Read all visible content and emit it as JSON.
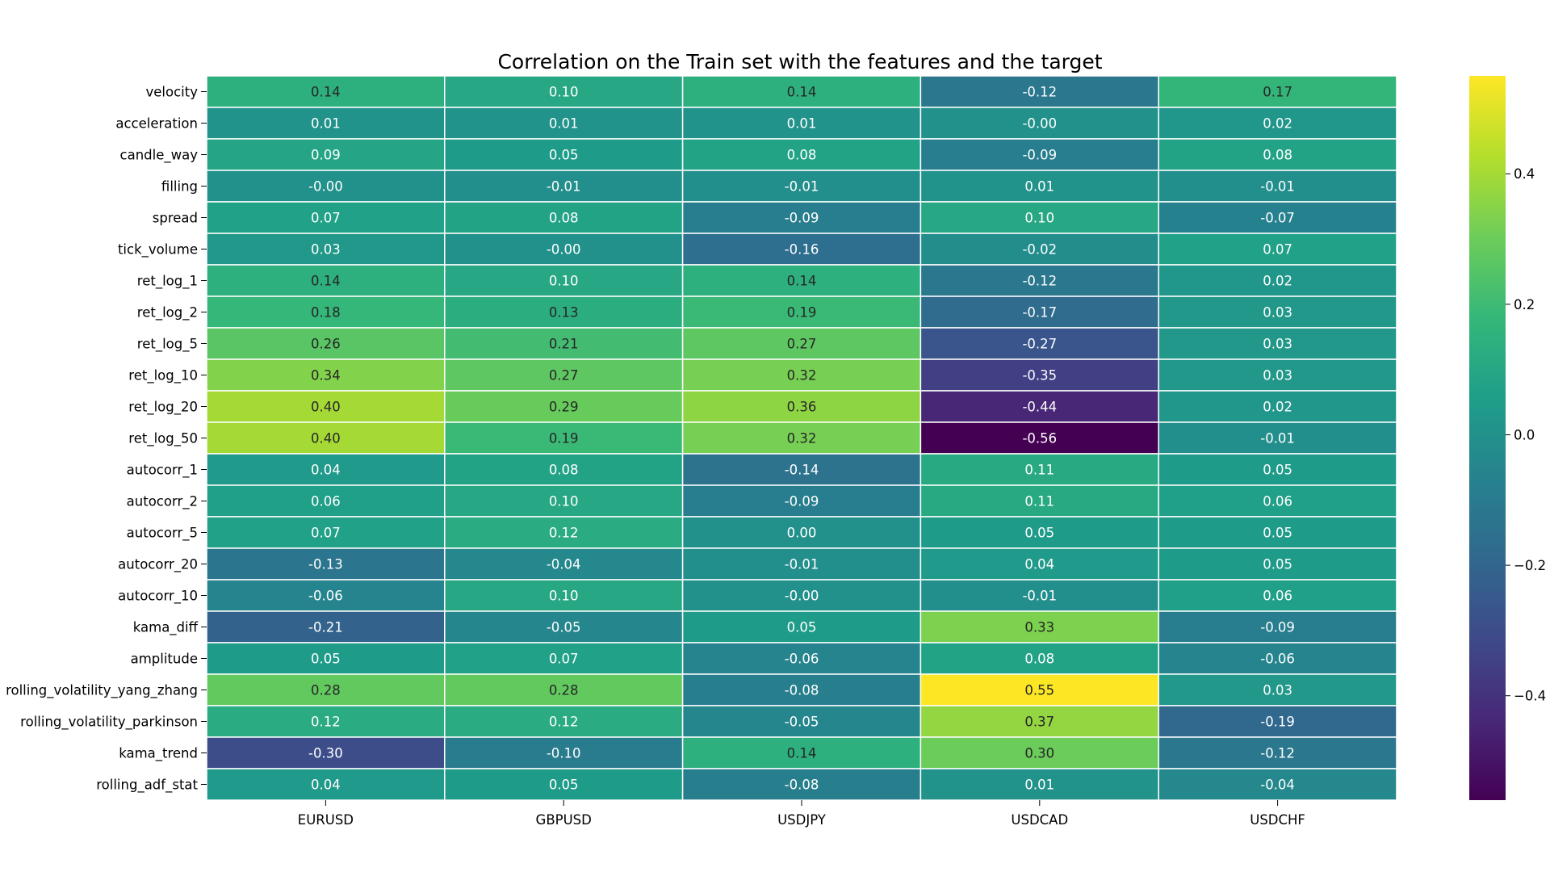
{
  "chart_data": {
    "type": "heatmap",
    "title": "Correlation on the Train set with the features and the target",
    "colormap": "viridis",
    "vmin": -0.56,
    "vmax": 0.55,
    "columns": [
      "EURUSD",
      "GBPUSD",
      "USDJPY",
      "USDCAD",
      "USDCHF"
    ],
    "rows": [
      "velocity",
      "acceleration",
      "candle_way",
      "filling",
      "spread",
      "tick_volume",
      "ret_log_1",
      "ret_log_2",
      "ret_log_5",
      "ret_log_10",
      "ret_log_20",
      "ret_log_50",
      "autocorr_1",
      "autocorr_2",
      "autocorr_5",
      "autocorr_20",
      "autocorr_10",
      "kama_diff",
      "amplitude",
      "rolling_volatility_yang_zhang",
      "rolling_volatility_parkinson",
      "kama_trend",
      "rolling_adf_stat"
    ],
    "values": [
      [
        0.14,
        0.1,
        0.14,
        -0.12,
        0.17
      ],
      [
        0.01,
        0.01,
        0.01,
        -0.0,
        0.02
      ],
      [
        0.09,
        0.05,
        0.08,
        -0.09,
        0.08
      ],
      [
        -0.0,
        -0.01,
        -0.01,
        0.01,
        -0.01
      ],
      [
        0.07,
        0.08,
        -0.09,
        0.1,
        -0.07
      ],
      [
        0.03,
        -0.0,
        -0.16,
        -0.02,
        0.07
      ],
      [
        0.14,
        0.1,
        0.14,
        -0.12,
        0.02
      ],
      [
        0.18,
        0.13,
        0.19,
        -0.17,
        0.03
      ],
      [
        0.26,
        0.21,
        0.27,
        -0.27,
        0.03
      ],
      [
        0.34,
        0.27,
        0.32,
        -0.35,
        0.03
      ],
      [
        0.4,
        0.29,
        0.36,
        -0.44,
        0.02
      ],
      [
        0.4,
        0.19,
        0.32,
        -0.56,
        -0.01
      ],
      [
        0.04,
        0.08,
        -0.14,
        0.11,
        0.05
      ],
      [
        0.06,
        0.1,
        -0.09,
        0.11,
        0.06
      ],
      [
        0.07,
        0.12,
        0.0,
        0.05,
        0.05
      ],
      [
        -0.13,
        -0.04,
        -0.01,
        0.04,
        0.05
      ],
      [
        -0.06,
        0.1,
        -0.0,
        -0.01,
        0.06
      ],
      [
        -0.21,
        -0.05,
        0.05,
        0.33,
        -0.09
      ],
      [
        0.05,
        0.07,
        -0.06,
        0.08,
        -0.06
      ],
      [
        0.28,
        0.28,
        -0.08,
        0.55,
        0.03
      ],
      [
        0.12,
        0.12,
        -0.05,
        0.37,
        -0.19
      ],
      [
        -0.3,
        -0.1,
        0.14,
        0.3,
        -0.12
      ],
      [
        0.04,
        0.05,
        -0.08,
        0.01,
        -0.04
      ]
    ],
    "colorbar": {
      "ticks": [
        0.4,
        0.2,
        0.0,
        -0.2,
        -0.4
      ],
      "tick_labels": [
        "0.4",
        "0.2",
        "0.0",
        "−0.2",
        "−0.4"
      ]
    }
  }
}
